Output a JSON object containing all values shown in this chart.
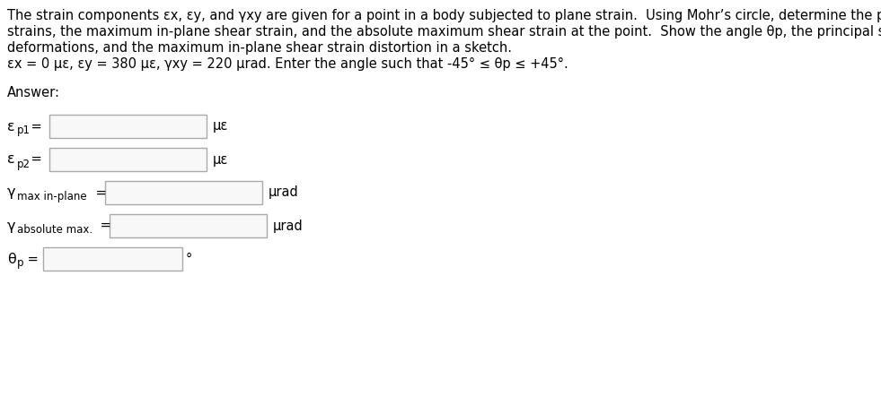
{
  "line1": "The strain components εx, εy, and γxy are given for a point in a body subjected to plane strain.  Using Mohr’s circle, determine the principal",
  "line2": "strains, the maximum in-plane shear strain, and the absolute maximum shear strain at the point.  Show the angle θp, the principal strain",
  "line3": "deformations, and the maximum in-plane shear strain distortion in a sketch.",
  "line4": "εx = 0 με, εy = 380 με, γxy = 220 μrad. Enter the angle such that -45° ≤ θp ≤ +45°.",
  "answer_label": "Answer:",
  "bg_color": "#ffffff",
  "box_edge_color": "#aaaaaa",
  "text_color": "#000000",
  "font_size": 10.5
}
